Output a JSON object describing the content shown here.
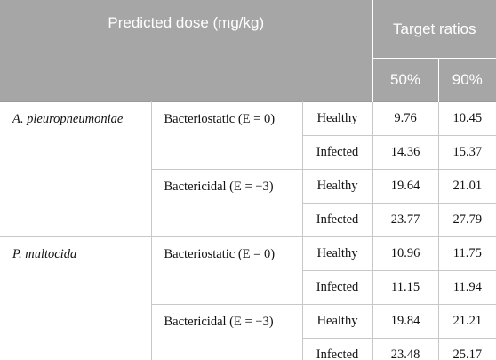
{
  "header": {
    "title": "Predicted dose (mg/kg)",
    "group": "Target ratios",
    "subcols": [
      "50%",
      "90%"
    ]
  },
  "rows": [
    {
      "name": "A. pleuropneumoniae",
      "effects": [
        {
          "label": "Bacteriostatic (E = 0)",
          "conditions": [
            {
              "status": "Healthy",
              "values": [
                9.76,
                10.45
              ]
            },
            {
              "status": "Infected",
              "values": [
                14.36,
                15.37
              ]
            }
          ]
        },
        {
          "label": "Bactericidal (E = −3)",
          "conditions": [
            {
              "status": "Healthy",
              "values": [
                19.64,
                21.01
              ]
            },
            {
              "status": "Infected",
              "values": [
                23.77,
                27.79
              ]
            }
          ]
        }
      ]
    },
    {
      "name": "P. multocida",
      "effects": [
        {
          "label": "Bacteriostatic (E = 0)",
          "conditions": [
            {
              "status": "Healthy",
              "values": [
                10.96,
                11.75
              ]
            },
            {
              "status": "Infected",
              "values": [
                11.15,
                11.94
              ]
            }
          ]
        },
        {
          "label": "Bactericidal (E = −3)",
          "conditions": [
            {
              "status": "Healthy",
              "values": [
                19.84,
                21.21
              ]
            },
            {
              "status": "Infected",
              "values": [
                23.48,
                25.17
              ]
            }
          ]
        }
      ]
    }
  ]
}
